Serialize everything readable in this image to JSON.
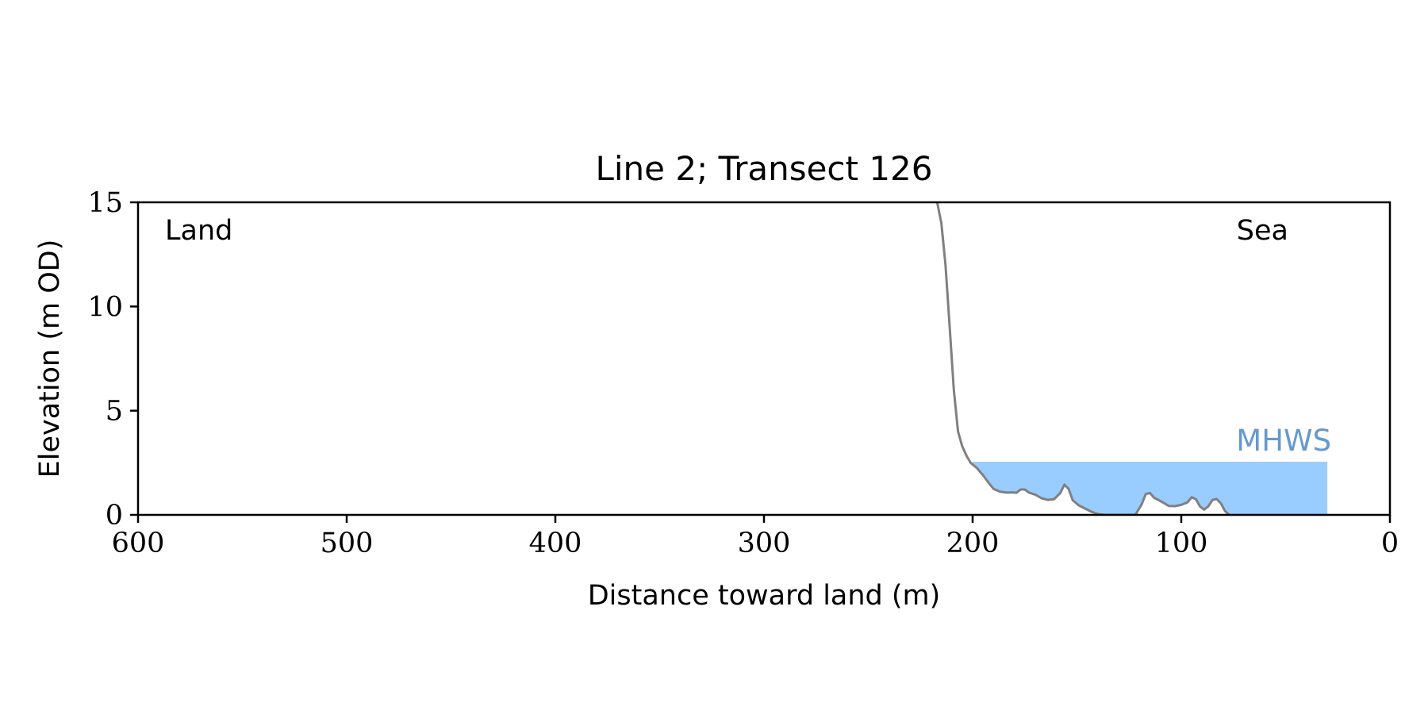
{
  "chart_data": {
    "type": "line",
    "title": "Line 2; Transect 126",
    "xlabel": "Distance toward land (m)",
    "ylabel": "Elevation (m OD)",
    "xlim": [
      600,
      0
    ],
    "ylim": [
      0,
      15
    ],
    "x_ticks": [
      600,
      500,
      400,
      300,
      200,
      100,
      0
    ],
    "y_ticks": [
      0,
      5,
      10,
      15
    ],
    "grid": false,
    "annotations": {
      "land": "Land",
      "sea": "Sea",
      "mhws": "MHWS"
    },
    "mhws": {
      "level": 2.55,
      "x_start": 200,
      "x_end": 30,
      "fill_color": "#99CCFF",
      "label_color": "#6699CC"
    },
    "series": [
      {
        "color": "#808080",
        "points": [
          [
            217,
            15.0
          ],
          [
            215,
            14.0
          ],
          [
            213,
            12.0
          ],
          [
            211,
            9.0
          ],
          [
            209,
            6.0
          ],
          [
            207,
            4.0
          ],
          [
            205,
            3.3
          ],
          [
            203,
            2.85
          ],
          [
            201,
            2.5
          ],
          [
            198,
            2.25
          ],
          [
            195,
            1.9
          ],
          [
            192,
            1.5
          ],
          [
            190,
            1.25
          ],
          [
            187,
            1.12
          ],
          [
            184,
            1.07
          ],
          [
            181,
            1.08
          ],
          [
            179,
            1.06
          ],
          [
            177,
            1.22
          ],
          [
            175,
            1.22
          ],
          [
            173,
            1.07
          ],
          [
            170,
            0.97
          ],
          [
            167,
            0.8
          ],
          [
            164,
            0.72
          ],
          [
            161,
            0.75
          ],
          [
            158,
            1.05
          ],
          [
            156,
            1.45
          ],
          [
            154,
            1.25
          ],
          [
            152,
            0.7
          ],
          [
            149,
            0.45
          ],
          [
            146,
            0.3
          ],
          [
            143,
            0.15
          ],
          [
            140,
            0.04
          ],
          [
            137,
            0.0
          ],
          [
            122,
            0.0
          ],
          [
            119,
            0.5
          ],
          [
            117,
            1.0
          ],
          [
            115,
            1.05
          ],
          [
            113,
            0.82
          ],
          [
            111,
            0.72
          ],
          [
            108,
            0.55
          ],
          [
            106,
            0.43
          ],
          [
            103,
            0.42
          ],
          [
            100,
            0.48
          ],
          [
            97,
            0.6
          ],
          [
            95,
            0.85
          ],
          [
            93,
            0.75
          ],
          [
            91,
            0.4
          ],
          [
            89,
            0.25
          ],
          [
            87,
            0.42
          ],
          [
            85,
            0.72
          ],
          [
            83,
            0.76
          ],
          [
            81,
            0.55
          ],
          [
            79,
            0.18
          ],
          [
            77,
            0.0
          ]
        ]
      }
    ]
  }
}
